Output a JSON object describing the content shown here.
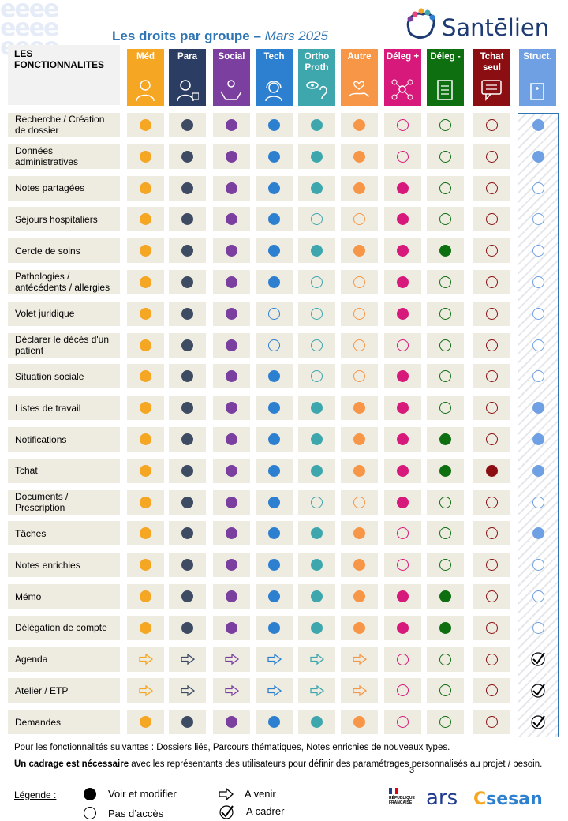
{
  "header": {
    "title_main": "Les droits par groupe –",
    "title_date": "Mars 2025",
    "logo_text": "Santēlien",
    "features_heading": "LES FONCTIONNALITES"
  },
  "colors": {
    "med": "#f5a623",
    "para": "#3d4b63",
    "social": "#7b3fa0",
    "tech": "#2d7fd0",
    "ortho": "#3ea7ad",
    "autre": "#f79646",
    "deleg_plus": "#d6197a",
    "deleg_minus": "#0e6f11",
    "tchat": "#8b0f12",
    "struct": "#6fa0e3"
  },
  "columns": [
    {
      "key": "med",
      "label": "Méd",
      "bg": "#f5a623",
      "icon": "doctor-icon"
    },
    {
      "key": "para",
      "label": "Para",
      "bg": "#2b3d62",
      "icon": "nurse-icon"
    },
    {
      "key": "social",
      "label": "Social",
      "bg": "#7b3fa0",
      "icon": "care-hands-icon"
    },
    {
      "key": "tech",
      "label": "Tech",
      "bg": "#2d7fd0",
      "icon": "headset-icon"
    },
    {
      "key": "ortho",
      "label": "Ortho Proth",
      "bg": "#3ea7ad",
      "icon": "eye-ear-icon"
    },
    {
      "key": "autre",
      "label": "Autre",
      "bg": "#f79646",
      "icon": "hand-heart-icon"
    },
    {
      "key": "deleg_plus",
      "label": "Déleg +",
      "bg": "#d6197a",
      "icon": "network-icon"
    },
    {
      "key": "deleg_minus",
      "label": "Déleg -",
      "bg": "#0e6f11",
      "icon": "clipboard-icon"
    },
    {
      "key": "tchat",
      "label": "Tchat seul",
      "bg": "#8b0f12",
      "icon": "chat-icon"
    },
    {
      "key": "struct",
      "label": "Struct.",
      "bg": "#6fa0e3",
      "icon": "building-icon"
    }
  ],
  "rows": [
    {
      "label": "Recherche / Création de dossier",
      "cells": "FFFFFFOOOF"
    },
    {
      "label": "Données administratives",
      "cells": "FFFFFFOOOF"
    },
    {
      "label": "Notes partagées",
      "cells": "FFFFFFFOOO"
    },
    {
      "label": "Séjours hospitaliers",
      "cells": "FFFFOOFOOO"
    },
    {
      "label": "Cercle de soins",
      "cells": "FFFFFFFFOO"
    },
    {
      "label": "Pathologies / antécédents / allergies",
      "cells": "FFFFOOFOOO"
    },
    {
      "label": "Volet juridique",
      "cells": "FFFOOOFOOO"
    },
    {
      "label": "Déclarer le décès d'un patient",
      "cells": "FFFOOOOOOO"
    },
    {
      "label": "Situation sociale",
      "cells": "FFFFOOFOOO"
    },
    {
      "label": "Listes de travail",
      "cells": "FFFFFFFOOF"
    },
    {
      "label": "Notifications",
      "cells": "FFFFFFFFOF"
    },
    {
      "label": "Tchat",
      "cells": "FFFFFFFFFF"
    },
    {
      "label": "Documents / Prescription",
      "cells": "FFFFOOFOOO"
    },
    {
      "label": "Tâches",
      "cells": "FFFFFFOOOF"
    },
    {
      "label": "Notes enrichies",
      "cells": "FFFFFFOOOO"
    },
    {
      "label": "Mémo",
      "cells": "FFFFFFFFOO"
    },
    {
      "label": "Délégation de compte",
      "cells": "FFFFFFFFOO"
    },
    {
      "label": "Agenda",
      "cells": "AAAAAAOOOC"
    },
    {
      "label": "Atelier / ETP",
      "cells": "AAAAAAOOOC"
    },
    {
      "label": "Demandes",
      "cells": "FFFFFFOOOC"
    }
  ],
  "footer": {
    "note1": "Pour les fonctionnalités suivantes : Dossiers liés, Parcours thématiques, Notes enrichies de nouveaux types.",
    "note2_bold": "Un cadrage est nécessaire",
    "note2_rest": " avec les représentants des utilisateurs pour définir des paramétrages personnalisés au projet / besoin.",
    "page_number": "3",
    "legend_title": "Légende :",
    "legend_full": "Voir et modifier",
    "legend_none": "Pas d’accès",
    "legend_future": "A venir",
    "legend_frame": "A cadrer"
  },
  "partners": {
    "rf": "RÉPUBLIQUE FRANÇAISE",
    "ars": "ars",
    "sesan": "sesan"
  }
}
